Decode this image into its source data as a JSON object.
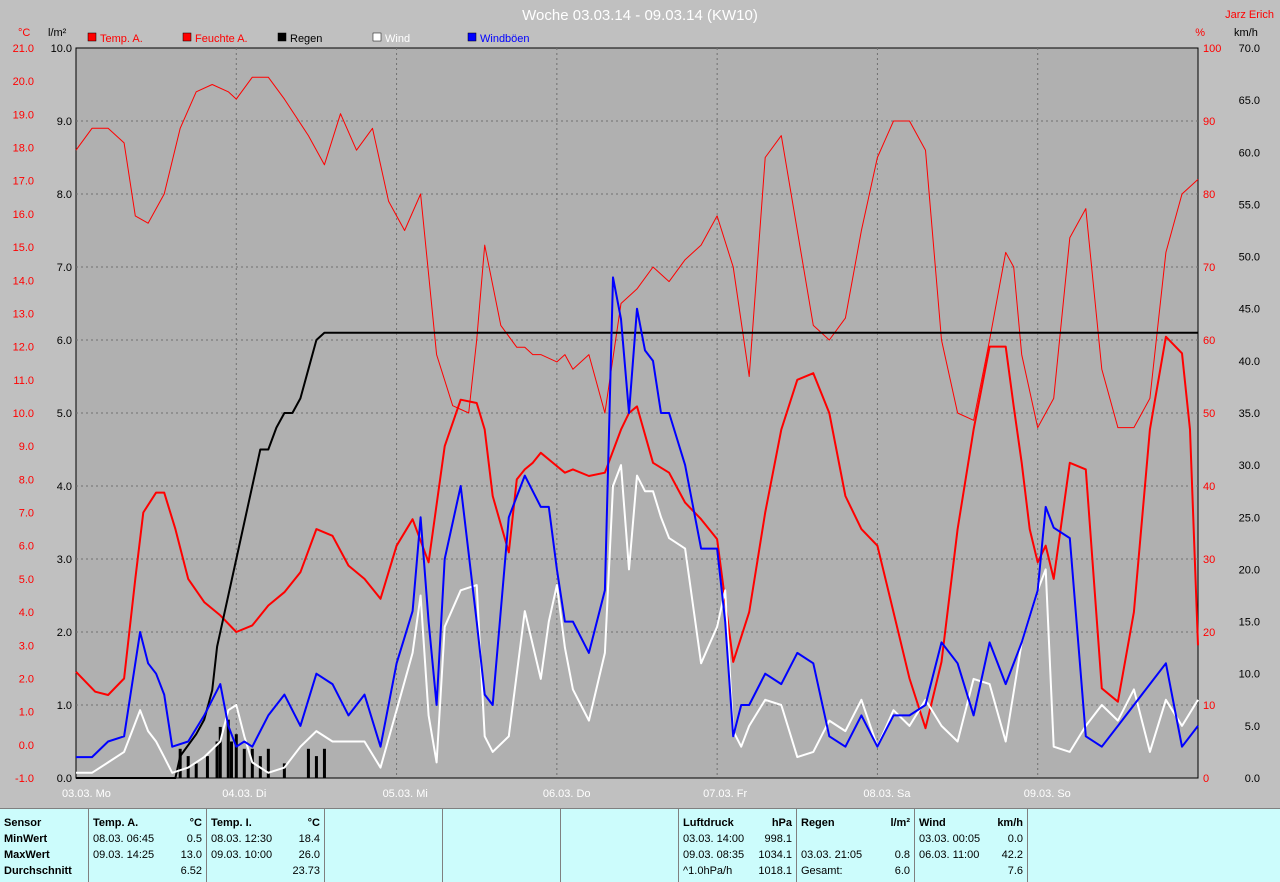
{
  "chart_data": {
    "type": "line",
    "title": "Woche 03.03.14 - 09.03.14 (KW10)",
    "author": "Jarz Erich",
    "axes": {
      "temp": {
        "unit": "°C",
        "ticks": [
          "21.0",
          "20.0",
          "19.0",
          "18.0",
          "17.0",
          "16.0",
          "15.0",
          "14.0",
          "13.0",
          "12.0",
          "11.0",
          "10.0",
          "9.0",
          "8.0",
          "7.0",
          "6.0",
          "5.0",
          "4.0",
          "3.0",
          "2.0",
          "1.0",
          "0.0",
          "-1.0"
        ],
        "range": [
          -1,
          21
        ]
      },
      "rain": {
        "unit": "l/m²",
        "ticks": [
          "10.0",
          "9.0",
          "8.0",
          "7.0",
          "6.0",
          "5.0",
          "4.0",
          "3.0",
          "2.0",
          "1.0",
          "0.0"
        ],
        "range": [
          0,
          10
        ]
      },
      "humidity": {
        "unit": "%",
        "ticks": [
          "100",
          "90",
          "80",
          "70",
          "60",
          "50",
          "40",
          "30",
          "20",
          "10",
          "0"
        ],
        "range": [
          0,
          100
        ]
      },
      "wind": {
        "unit": "km/h",
        "ticks": [
          "70.0",
          "65.0",
          "60.0",
          "55.0",
          "50.0",
          "45.0",
          "40.0",
          "35.0",
          "30.0",
          "25.0",
          "20.0",
          "15.0",
          "10.0",
          "5.0",
          "0.0"
        ],
        "range": [
          0,
          70
        ]
      }
    },
    "x_range_days": [
      0,
      7
    ],
    "x_labels": [
      "03.03. Mo",
      "04.03. Di",
      "05.03. Mi",
      "06.03. Do",
      "07.03. Fr",
      "08.03. Sa",
      "09.03. So"
    ],
    "grid": true,
    "legend_position": "top",
    "series": [
      {
        "name": "Temp. A.",
        "axis": "temp",
        "color": "#ff0000",
        "width": 2,
        "x": [
          0,
          0.12,
          0.2,
          0.3,
          0.37,
          0.42,
          0.5,
          0.55,
          0.62,
          0.7,
          0.8,
          0.9,
          1.0,
          1.1,
          1.2,
          1.3,
          1.4,
          1.5,
          1.6,
          1.7,
          1.8,
          1.9,
          2.0,
          2.1,
          2.2,
          2.3,
          2.4,
          2.5,
          2.55,
          2.6,
          2.7,
          2.75,
          2.8,
          2.85,
          2.9,
          3.0,
          3.05,
          3.1,
          3.2,
          3.3,
          3.4,
          3.45,
          3.5,
          3.6,
          3.7,
          3.8,
          3.9,
          4.0,
          4.1,
          4.2,
          4.3,
          4.4,
          4.5,
          4.6,
          4.7,
          4.8,
          4.9,
          5.0,
          5.1,
          5.2,
          5.3,
          5.4,
          5.5,
          5.6,
          5.7,
          5.8,
          5.85,
          5.9,
          5.95,
          6.0,
          6.05,
          6.1,
          6.2,
          6.3,
          6.4,
          6.5,
          6.6,
          6.7,
          6.8,
          6.9,
          6.95,
          7.0
        ],
        "y": [
          2.2,
          1.6,
          1.5,
          2.0,
          5.0,
          7.0,
          7.6,
          7.6,
          6.5,
          5.0,
          4.3,
          3.9,
          3.4,
          3.6,
          4.2,
          4.6,
          5.2,
          6.5,
          6.3,
          5.4,
          5.0,
          4.4,
          6.0,
          6.8,
          5.5,
          9.0,
          10.4,
          10.3,
          9.5,
          7.5,
          5.8,
          8.0,
          8.3,
          8.5,
          8.8,
          8.4,
          8.2,
          8.3,
          8.1,
          8.2,
          9.5,
          10.0,
          10.2,
          8.5,
          8.2,
          7.3,
          6.8,
          6.2,
          2.5,
          4.0,
          7.0,
          9.5,
          11.0,
          11.2,
          10.0,
          7.5,
          6.5,
          6.0,
          4.0,
          2.0,
          0.5,
          2.5,
          6.5,
          9.5,
          12.0,
          12.0,
          10.2,
          8.5,
          6.5,
          5.5,
          6.0,
          5.0,
          8.5,
          8.3,
          1.7,
          1.3,
          4.0,
          9.5,
          12.3,
          11.8,
          9.5,
          3.0
        ],
        "legend_label": "Temp. A."
      },
      {
        "name": "Feuchte A.",
        "axis": "humidity",
        "color": "#ff0000",
        "width": 1,
        "x": [
          0,
          0.1,
          0.2,
          0.3,
          0.37,
          0.45,
          0.55,
          0.65,
          0.75,
          0.85,
          0.95,
          1.0,
          1.1,
          1.2,
          1.3,
          1.45,
          1.55,
          1.65,
          1.75,
          1.85,
          1.95,
          2.05,
          2.15,
          2.25,
          2.35,
          2.45,
          2.5,
          2.55,
          2.65,
          2.75,
          2.8,
          2.85,
          2.9,
          3.0,
          3.05,
          3.1,
          3.2,
          3.3,
          3.4,
          3.5,
          3.6,
          3.7,
          3.8,
          3.9,
          4.0,
          4.1,
          4.2,
          4.3,
          4.4,
          4.5,
          4.6,
          4.7,
          4.8,
          4.9,
          5.0,
          5.1,
          5.2,
          5.3,
          5.4,
          5.5,
          5.6,
          5.7,
          5.8,
          5.85,
          5.9,
          6.0,
          6.1,
          6.2,
          6.3,
          6.4,
          6.5,
          6.6,
          6.7,
          6.8,
          6.9,
          7.0
        ],
        "y": [
          86,
          89,
          89,
          87,
          77,
          76,
          80,
          89,
          94,
          95,
          94,
          93,
          96,
          96,
          93,
          88,
          84,
          91,
          86,
          89,
          79,
          75,
          80,
          58,
          51,
          50,
          60,
          73,
          62,
          59,
          59,
          58,
          58,
          57,
          58,
          56,
          58,
          50,
          65,
          67,
          70,
          68,
          71,
          73,
          77,
          70,
          55,
          85,
          88,
          75,
          62,
          60,
          63,
          75,
          85,
          90,
          90,
          86,
          60,
          50,
          49,
          60,
          72,
          70,
          58,
          48,
          52,
          74,
          78,
          56,
          48,
          48,
          52,
          72,
          80,
          82
        ],
        "legend_label": "Feuchte A."
      },
      {
        "name": "Regen",
        "axis": "rain",
        "color": "#000000",
        "width": 2,
        "x": [
          0,
          0.62,
          0.65,
          0.75,
          0.8,
          0.85,
          0.88,
          0.95,
          1.0,
          1.05,
          1.1,
          1.15,
          1.2,
          1.25,
          1.3,
          1.35,
          1.4,
          1.45,
          1.5,
          1.55,
          1.6,
          1.65,
          7.0
        ],
        "y": [
          0,
          0,
          0.3,
          0.6,
          0.8,
          1.2,
          1.8,
          2.5,
          3.0,
          3.5,
          4.0,
          4.5,
          4.5,
          4.8,
          5.0,
          5.0,
          5.2,
          5.6,
          6.0,
          6.1,
          6.1,
          6.1,
          6.1
        ],
        "legend_label": "Regen"
      },
      {
        "name": "Wind",
        "axis": "wind",
        "color": "#ffffff",
        "width": 2,
        "x": [
          0,
          0.1,
          0.2,
          0.3,
          0.35,
          0.4,
          0.45,
          0.5,
          0.55,
          0.6,
          0.7,
          0.8,
          0.9,
          0.95,
          1.0,
          1.05,
          1.1,
          1.2,
          1.3,
          1.4,
          1.5,
          1.6,
          1.7,
          1.8,
          1.9,
          2.0,
          2.1,
          2.15,
          2.2,
          2.25,
          2.3,
          2.4,
          2.5,
          2.55,
          2.6,
          2.7,
          2.8,
          2.9,
          2.95,
          3.0,
          3.05,
          3.1,
          3.2,
          3.3,
          3.35,
          3.4,
          3.45,
          3.5,
          3.55,
          3.6,
          3.65,
          3.7,
          3.8,
          3.9,
          4.0,
          4.05,
          4.1,
          4.15,
          4.2,
          4.3,
          4.4,
          4.5,
          4.6,
          4.7,
          4.8,
          4.9,
          5.0,
          5.1,
          5.2,
          5.3,
          5.4,
          5.5,
          5.6,
          5.7,
          5.8,
          5.9,
          6.0,
          6.05,
          6.1,
          6.2,
          6.3,
          6.4,
          6.5,
          6.6,
          6.7,
          6.8,
          6.9,
          7.0
        ],
        "y": [
          0.5,
          0.5,
          1.5,
          2.5,
          4.5,
          6.5,
          4.5,
          3.5,
          2.0,
          0.5,
          1.0,
          2.0,
          3.5,
          6.5,
          7.0,
          4.0,
          1.5,
          0.5,
          1.0,
          3.0,
          4.5,
          3.5,
          3.5,
          3.5,
          1.0,
          6.5,
          12.0,
          17.5,
          6.0,
          1.5,
          14.5,
          18.0,
          18.5,
          4.0,
          2.5,
          4.0,
          16.0,
          9.5,
          15.0,
          18.5,
          12.5,
          8.5,
          5.5,
          12.0,
          28.0,
          30.0,
          20.0,
          29.0,
          27.5,
          27.5,
          25.0,
          23.0,
          22.0,
          11.0,
          14.5,
          18.0,
          4.5,
          3.0,
          5.0,
          7.5,
          7.0,
          2.0,
          2.5,
          5.5,
          4.5,
          7.5,
          3.0,
          6.5,
          5.0,
          7.5,
          5.0,
          3.5,
          9.5,
          9.0,
          3.5,
          13.0,
          18.0,
          20.0,
          3.0,
          2.5,
          5.0,
          7.0,
          5.5,
          8.5,
          2.5,
          7.5,
          5.0,
          7.5
        ],
        "legend_label": "Wind"
      },
      {
        "name": "Windböen",
        "axis": "wind",
        "color": "#0000ff",
        "width": 2,
        "x": [
          0,
          0.1,
          0.2,
          0.3,
          0.35,
          0.4,
          0.45,
          0.5,
          0.55,
          0.6,
          0.7,
          0.8,
          0.9,
          0.95,
          1.0,
          1.05,
          1.1,
          1.2,
          1.3,
          1.4,
          1.5,
          1.6,
          1.7,
          1.8,
          1.9,
          2.0,
          2.1,
          2.15,
          2.2,
          2.25,
          2.3,
          2.4,
          2.5,
          2.55,
          2.6,
          2.7,
          2.8,
          2.9,
          2.95,
          3.0,
          3.05,
          3.1,
          3.2,
          3.3,
          3.35,
          3.4,
          3.45,
          3.5,
          3.55,
          3.6,
          3.65,
          3.7,
          3.8,
          3.9,
          4.0,
          4.05,
          4.1,
          4.15,
          4.2,
          4.3,
          4.4,
          4.5,
          4.6,
          4.7,
          4.8,
          4.9,
          5.0,
          5.1,
          5.2,
          5.3,
          5.4,
          5.5,
          5.6,
          5.7,
          5.8,
          5.9,
          6.0,
          6.05,
          6.1,
          6.2,
          6.3,
          6.4,
          6.5,
          6.6,
          6.7,
          6.8,
          6.9,
          7.0
        ],
        "y": [
          2,
          2,
          3.5,
          4,
          9,
          14,
          11,
          10,
          8,
          3,
          3.5,
          6,
          9,
          5,
          3,
          3.5,
          3,
          6,
          8,
          5,
          10,
          9,
          6,
          8,
          3,
          11,
          16,
          25,
          15,
          7,
          21,
          28,
          15,
          8,
          7,
          25,
          29,
          26,
          26,
          20,
          15,
          15,
          12,
          18,
          48,
          44,
          35,
          45,
          41,
          40,
          35,
          35,
          30,
          22,
          22,
          15,
          4,
          7,
          7,
          10,
          9,
          12,
          11,
          4,
          3,
          6,
          3,
          6,
          6,
          7,
          13,
          11,
          6,
          13,
          9,
          13,
          18,
          26,
          24,
          23,
          4,
          3,
          5,
          7,
          9,
          11,
          3,
          5
        ],
        "legend_label": "Windböen"
      }
    ],
    "rain_bars": {
      "name": "Regen (Stunde)",
      "axis": "rain",
      "color": "#000000",
      "x": [
        0.65,
        0.7,
        0.75,
        0.82,
        0.88,
        0.9,
        0.95,
        0.97,
        1.0,
        1.05,
        1.1,
        1.15,
        1.2,
        1.3,
        1.45,
        1.5,
        1.55
      ],
      "y": [
        0.4,
        0.3,
        0.2,
        0.3,
        0.5,
        0.7,
        0.8,
        0.5,
        0.6,
        0.4,
        0.4,
        0.3,
        0.4,
        0.2,
        0.4,
        0.3,
        0.4
      ]
    }
  },
  "legend": [
    {
      "label": "Temp. A.",
      "color": "#ff0000"
    },
    {
      "label": "Feuchte A.",
      "color": "#ff0000"
    },
    {
      "label": "Regen",
      "color": "#000000"
    },
    {
      "label": "Wind",
      "color": "#ffffff"
    },
    {
      "label": "Windböen",
      "color": "#0000ff"
    }
  ],
  "stats": {
    "sensor": {
      "header": "Sensor",
      "rows": [
        "MinWert",
        "MaxWert",
        "Durchschnitt"
      ]
    },
    "temp_a": {
      "header": "Temp. A.",
      "unit": "°C",
      "rows": [
        [
          "08.03.  06:45",
          "0.5"
        ],
        [
          "09.03.  14:25",
          "13.0"
        ],
        [
          "",
          "6.52"
        ]
      ]
    },
    "temp_i": {
      "header": "Temp. I.",
      "unit": "°C",
      "rows": [
        [
          "08.03.  12:30",
          "18.4"
        ],
        [
          "09.03.  10:00",
          "26.0"
        ],
        [
          "",
          "23.73"
        ]
      ]
    },
    "luftdruck": {
      "header": "Luftdruck",
      "unit": "hPa",
      "rows": [
        [
          "03.03.  14:00",
          "998.1"
        ],
        [
          "09.03.  08:35",
          "1034.1"
        ],
        [
          "^1.0hPa/h",
          "1018.1"
        ]
      ]
    },
    "regen": {
      "header": "Regen",
      "unit": "l/m²",
      "rows": [
        [
          "",
          ""
        ],
        [
          "03.03.  21:05",
          "0.8"
        ],
        [
          "Gesamt:",
          "6.0"
        ]
      ]
    },
    "wind": {
      "header": "Wind",
      "unit": "km/h",
      "rows": [
        [
          "03.03.  00:05",
          "0.0"
        ],
        [
          "06.03.  11:00",
          "42.2"
        ],
        [
          "",
          "7.6"
        ]
      ]
    }
  }
}
